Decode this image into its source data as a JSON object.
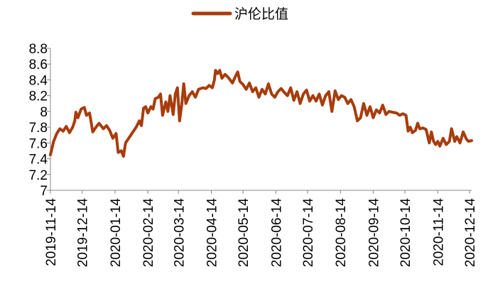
{
  "chart_data": {
    "type": "line",
    "legend": {
      "position": "top",
      "entries": [
        "沪伦比值"
      ]
    },
    "series_color": "#a83c0c",
    "grid": false,
    "ylim": [
      7,
      8.8
    ],
    "yticks": [
      "7",
      "7.2",
      "7.4",
      "7.6",
      "7.8",
      "8",
      "8.2",
      "8.4",
      "8.6",
      "8.8"
    ],
    "xlim": [
      "2019-11-14",
      "2020-12-16"
    ],
    "xticks": [
      "2019-11-14",
      "2019-12-14",
      "2020-01-14",
      "2020-02-14",
      "2020-03-14",
      "2020-04-14",
      "2020-05-14",
      "2020-06-14",
      "2020-07-14",
      "2020-08-14",
      "2020-09-14",
      "2020-10-14",
      "2020-11-14",
      "2020-12-14"
    ],
    "series": [
      {
        "name": "沪伦比值",
        "points": [
          [
            "2019-11-14",
            7.45
          ],
          [
            "2019-11-17",
            7.62
          ],
          [
            "2019-11-20",
            7.72
          ],
          [
            "2019-11-23",
            7.78
          ],
          [
            "2019-11-26",
            7.75
          ],
          [
            "2019-11-29",
            7.81
          ],
          [
            "2019-12-02",
            7.73
          ],
          [
            "2019-12-05",
            7.8
          ],
          [
            "2019-12-07",
            7.88
          ],
          [
            "2019-12-08",
            7.99
          ],
          [
            "2019-12-10",
            7.92
          ],
          [
            "2019-12-13",
            8.03
          ],
          [
            "2019-12-16",
            8.05
          ],
          [
            "2019-12-18",
            7.95
          ],
          [
            "2019-12-21",
            7.98
          ],
          [
            "2019-12-24",
            7.74
          ],
          [
            "2019-12-27",
            7.8
          ],
          [
            "2019-12-30",
            7.85
          ],
          [
            "2020-01-03",
            7.78
          ],
          [
            "2020-01-06",
            7.82
          ],
          [
            "2020-01-09",
            7.76
          ],
          [
            "2020-01-12",
            7.66
          ],
          [
            "2020-01-15",
            7.72
          ],
          [
            "2020-01-17",
            7.48
          ],
          [
            "2020-01-20",
            7.5
          ],
          [
            "2020-01-22",
            7.43
          ],
          [
            "2020-01-24",
            7.6
          ],
          [
            "2020-02-03",
            7.8
          ],
          [
            "2020-02-06",
            7.88
          ],
          [
            "2020-02-08",
            7.82
          ],
          [
            "2020-02-10",
            8.04
          ],
          [
            "2020-02-12",
            8.06
          ],
          [
            "2020-02-14",
            7.98
          ],
          [
            "2020-02-17",
            8.06
          ],
          [
            "2020-02-19",
            8.03
          ],
          [
            "2020-02-21",
            8.16
          ],
          [
            "2020-02-24",
            8.18
          ],
          [
            "2020-02-26",
            8.22
          ],
          [
            "2020-02-28",
            7.95
          ],
          [
            "2020-03-02",
            8.12
          ],
          [
            "2020-03-04",
            8.0
          ],
          [
            "2020-03-06",
            8.2
          ],
          [
            "2020-03-09",
            7.96
          ],
          [
            "2020-03-11",
            8.22
          ],
          [
            "2020-03-13",
            8.3
          ],
          [
            "2020-03-15",
            7.88
          ],
          [
            "2020-03-17",
            8.08
          ],
          [
            "2020-03-19",
            8.35
          ],
          [
            "2020-03-21",
            8.1
          ],
          [
            "2020-03-24",
            8.2
          ],
          [
            "2020-03-27",
            8.25
          ],
          [
            "2020-03-30",
            8.18
          ],
          [
            "2020-04-02",
            8.28
          ],
          [
            "2020-04-06",
            8.3
          ],
          [
            "2020-04-09",
            8.29
          ],
          [
            "2020-04-12",
            8.33
          ],
          [
            "2020-04-15",
            8.3
          ],
          [
            "2020-04-17",
            8.4
          ],
          [
            "2020-04-18",
            8.52
          ],
          [
            "2020-04-20",
            8.48
          ],
          [
            "2020-04-22",
            8.52
          ],
          [
            "2020-04-24",
            8.42
          ],
          [
            "2020-04-27",
            8.47
          ],
          [
            "2020-04-30",
            8.43
          ],
          [
            "2020-05-04",
            8.36
          ],
          [
            "2020-05-07",
            8.45
          ],
          [
            "2020-05-09",
            8.5
          ],
          [
            "2020-05-11",
            8.38
          ],
          [
            "2020-05-14",
            8.34
          ],
          [
            "2020-05-17",
            8.28
          ],
          [
            "2020-05-20",
            8.36
          ],
          [
            "2020-05-23",
            8.25
          ],
          [
            "2020-05-26",
            8.3
          ],
          [
            "2020-05-29",
            8.18
          ],
          [
            "2020-06-01",
            8.28
          ],
          [
            "2020-06-04",
            8.22
          ],
          [
            "2020-06-07",
            8.35
          ],
          [
            "2020-06-10",
            8.22
          ],
          [
            "2020-06-13",
            8.18
          ],
          [
            "2020-06-16",
            8.25
          ],
          [
            "2020-06-19",
            8.29
          ],
          [
            "2020-06-22",
            8.24
          ],
          [
            "2020-06-25",
            8.2
          ],
          [
            "2020-06-28",
            8.3
          ],
          [
            "2020-07-01",
            8.14
          ],
          [
            "2020-07-04",
            8.25
          ],
          [
            "2020-07-07",
            8.1
          ],
          [
            "2020-07-10",
            8.22
          ],
          [
            "2020-07-13",
            8.27
          ],
          [
            "2020-07-16",
            8.13
          ],
          [
            "2020-07-19",
            8.2
          ],
          [
            "2020-07-22",
            8.13
          ],
          [
            "2020-07-25",
            8.22
          ],
          [
            "2020-07-28",
            8.08
          ],
          [
            "2020-07-31",
            8.2
          ],
          [
            "2020-08-03",
            8.25
          ],
          [
            "2020-08-06",
            8.0
          ],
          [
            "2020-08-09",
            8.26
          ],
          [
            "2020-08-12",
            8.15
          ],
          [
            "2020-08-15",
            8.2
          ],
          [
            "2020-08-18",
            8.18
          ],
          [
            "2020-08-21",
            8.1
          ],
          [
            "2020-08-24",
            8.15
          ],
          [
            "2020-08-27",
            8.06
          ],
          [
            "2020-08-30",
            7.88
          ],
          [
            "2020-09-02",
            7.92
          ],
          [
            "2020-09-05",
            8.1
          ],
          [
            "2020-09-08",
            7.95
          ],
          [
            "2020-09-11",
            8.06
          ],
          [
            "2020-09-14",
            7.92
          ],
          [
            "2020-09-17",
            8.02
          ],
          [
            "2020-09-20",
            7.98
          ],
          [
            "2020-09-23",
            8.08
          ],
          [
            "2020-09-26",
            7.96
          ],
          [
            "2020-09-29",
            8.0
          ],
          [
            "2020-10-02",
            7.99
          ],
          [
            "2020-10-06",
            7.98
          ],
          [
            "2020-10-09",
            7.95
          ],
          [
            "2020-10-12",
            7.97
          ],
          [
            "2020-10-15",
            7.95
          ],
          [
            "2020-10-17",
            7.75
          ],
          [
            "2020-10-19",
            7.8
          ],
          [
            "2020-10-21",
            7.73
          ],
          [
            "2020-10-24",
            7.76
          ],
          [
            "2020-10-26",
            7.85
          ],
          [
            "2020-10-28",
            7.78
          ],
          [
            "2020-10-31",
            7.79
          ],
          [
            "2020-11-03",
            7.77
          ],
          [
            "2020-11-06",
            7.6
          ],
          [
            "2020-11-08",
            7.74
          ],
          [
            "2020-11-10",
            7.62
          ],
          [
            "2020-11-12",
            7.58
          ],
          [
            "2020-11-14",
            7.62
          ],
          [
            "2020-11-16",
            7.56
          ],
          [
            "2020-11-19",
            7.66
          ],
          [
            "2020-11-22",
            7.58
          ],
          [
            "2020-11-25",
            7.62
          ],
          [
            "2020-11-27",
            7.78
          ],
          [
            "2020-11-30",
            7.62
          ],
          [
            "2020-12-02",
            7.68
          ],
          [
            "2020-12-05",
            7.6
          ],
          [
            "2020-12-08",
            7.74
          ],
          [
            "2020-12-11",
            7.65
          ],
          [
            "2020-12-13",
            7.62
          ],
          [
            "2020-12-16",
            7.63
          ]
        ]
      }
    ]
  }
}
